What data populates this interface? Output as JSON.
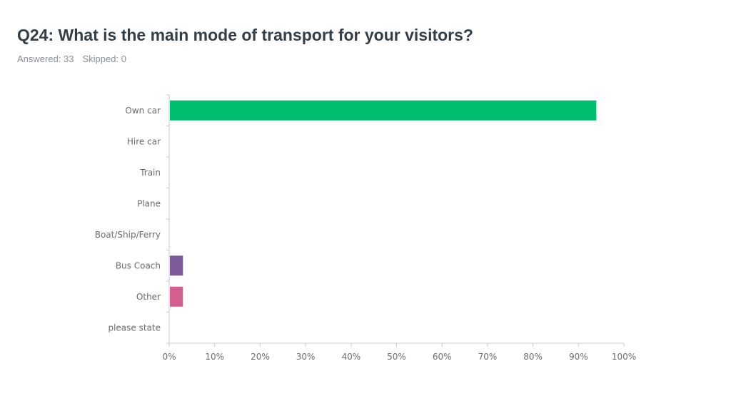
{
  "header": {
    "title": "Q24: What is the main mode of transport for your visitors?",
    "answered": "Answered: 33",
    "skipped": "Skipped: 0"
  },
  "chart_data": {
    "type": "bar",
    "orientation": "horizontal",
    "categories": [
      "Own car",
      "Hire car",
      "Train",
      "Plane",
      "Boat/Ship/Ferry",
      "Bus Coach",
      "Other",
      "please state"
    ],
    "values": [
      93.94,
      0,
      0,
      0,
      0,
      3.03,
      3.03,
      0
    ],
    "colors": [
      "#00bf6f",
      "#00bf6f",
      "#00bf6f",
      "#00bf6f",
      "#00bf6f",
      "#7d5b9a",
      "#d25f90",
      "#00bf6f"
    ],
    "xlim": [
      0,
      100
    ],
    "x_ticks": [
      "0%",
      "10%",
      "20%",
      "30%",
      "40%",
      "50%",
      "60%",
      "70%",
      "80%",
      "90%",
      "100%"
    ],
    "grid": false,
    "legend": "none"
  }
}
